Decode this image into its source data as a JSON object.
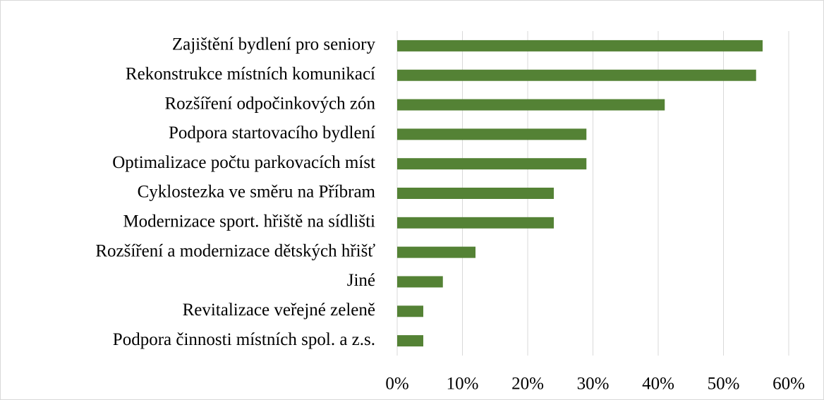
{
  "chart_data": {
    "type": "bar",
    "orientation": "horizontal",
    "categories": [
      "Zajištění bydlení pro seniory",
      "Rekonstrukce místních komunikací",
      "Rozšíření odpočinkových zón",
      "Podpora startovacího bydlení",
      "Optimalizace počtu parkovacích míst",
      "Cyklostezka ve směru na Příbram",
      "Modernizace sport. hřiště na sídlišti",
      "Rozšíření a modernizace dětských hřišť",
      "Jiné",
      "Revitalizace veřejné zeleně",
      "Podpora činnosti místních spol. a z.s."
    ],
    "values": [
      56,
      55,
      41,
      29,
      29,
      24,
      24,
      12,
      7,
      4,
      4
    ],
    "color": "#548235",
    "xlim": [
      0,
      60
    ],
    "xticks": [
      {
        "value": 0,
        "label": "0%"
      },
      {
        "value": 10,
        "label": "10%"
      },
      {
        "value": 20,
        "label": "20%"
      },
      {
        "value": 30,
        "label": "30%"
      },
      {
        "value": 40,
        "label": "40%"
      },
      {
        "value": 50,
        "label": "50%"
      },
      {
        "value": 60,
        "label": "60%"
      }
    ],
    "grid": true
  }
}
